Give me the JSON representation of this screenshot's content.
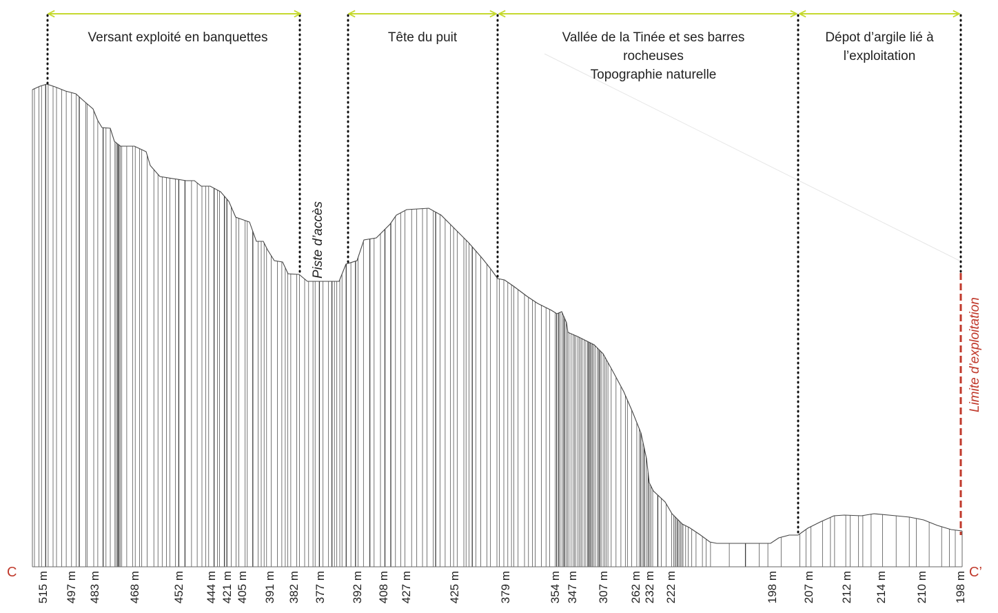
{
  "endpoints": {
    "start": "C",
    "end": "C’"
  },
  "colors": {
    "bracket": "#c5d92e",
    "limit": "#c0392b",
    "profile": "#222222",
    "text": "#222222"
  },
  "zones": [
    {
      "lines": [
        "Versant exploité en banquettes"
      ]
    },
    {
      "lines": [
        "Tête du puit"
      ]
    },
    {
      "lines": [
        "Vallée de la Tinée et ses barres",
        "rocheuses",
        "Topographie naturelle"
      ]
    },
    {
      "lines": [
        "Dépot d’argile lié à",
        "l’exploitation"
      ]
    }
  ],
  "access_road_label": "Piste d’accès",
  "limit_label": "Limite d’exploitation",
  "altitude_labels": [
    "515 m",
    "497 m",
    "483 m",
    "468 m",
    "452 m",
    "444 m",
    "421 m",
    "405 m",
    "391 m",
    "382 m",
    "377 m",
    "392 m",
    "408 m",
    "427 m",
    "425 m",
    "379 m",
    "354 m",
    "347 m",
    "307 m",
    "262 m",
    "232 m",
    "222 m",
    "198 m",
    "207 m",
    "212 m",
    "214 m",
    "210 m",
    "198 m"
  ]
}
